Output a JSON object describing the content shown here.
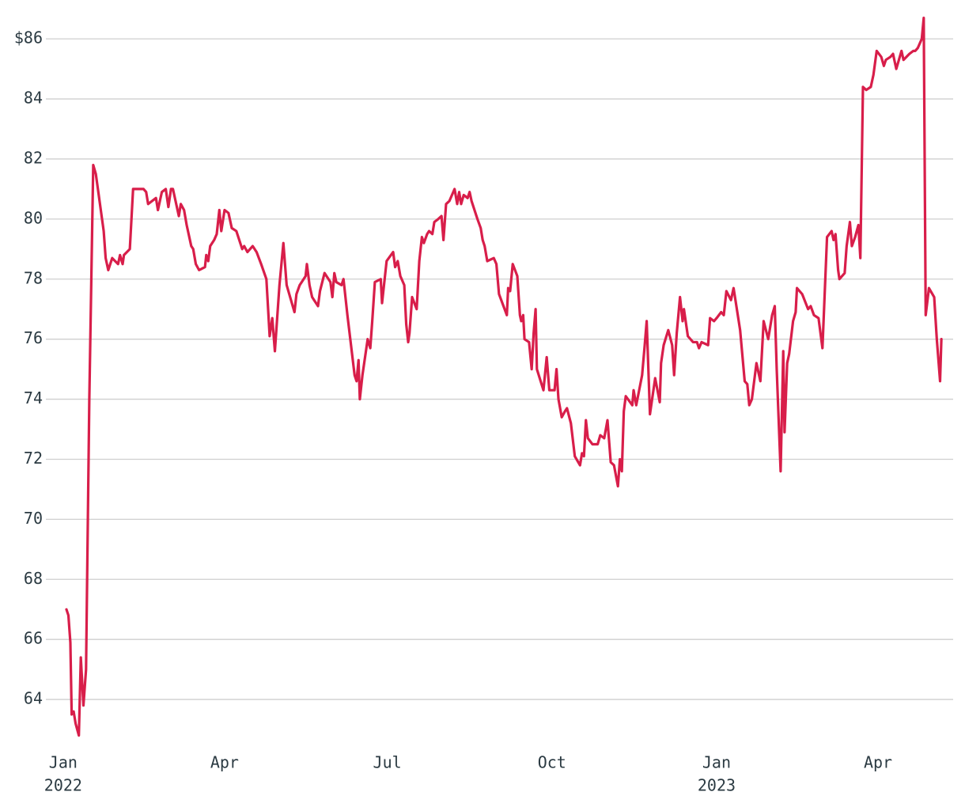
{
  "chart_data": {
    "type": "line",
    "color": "#d81e4a",
    "grid": true,
    "xlim": [
      2021.982,
      2023.362
    ],
    "ylim": [
      62.5,
      86.9
    ],
    "yticks": [
      64,
      66,
      68,
      70,
      72,
      74,
      76,
      78,
      80,
      82,
      84,
      {
        "value": 86,
        "label": "$86"
      }
    ],
    "xticks": [
      {
        "value": 2022,
        "label": "Jan"
      },
      {
        "value": 2022.247,
        "label": "Apr"
      },
      {
        "value": 2022.496,
        "label": "Jul"
      },
      {
        "value": 2022.748,
        "label": "Oct"
      },
      {
        "value": 2023,
        "label": "Jan"
      },
      {
        "value": 2023.247,
        "label": "Apr"
      }
    ],
    "x_year_labels": [
      {
        "value": 2022,
        "label": "2022"
      },
      {
        "value": 2023,
        "label": "2023"
      }
    ],
    "x": [
      2022.005,
      2022.008,
      2022.011,
      2022.013,
      2022.016,
      2022.019,
      2022.024,
      2022.027,
      2022.031,
      2022.035,
      2022.04,
      2022.046,
      2022.05,
      2022.062,
      2022.065,
      2022.069,
      2022.075,
      2022.084,
      2022.087,
      2022.091,
      2022.093,
      2022.102,
      2022.104,
      2022.107,
      2022.113,
      2022.123,
      2022.127,
      2022.13,
      2022.142,
      2022.145,
      2022.151,
      2022.157,
      2022.161,
      2022.165,
      2022.168,
      2022.177,
      2022.18,
      2022.185,
      2022.189,
      2022.196,
      2022.199,
      2022.203,
      2022.208,
      2022.217,
      2022.219,
      2022.222,
      2022.225,
      2022.231,
      2022.235,
      2022.239,
      2022.242,
      2022.247,
      2022.253,
      2022.258,
      2022.265,
      2022.274,
      2022.277,
      2022.282,
      2022.29,
      2022.296,
      2022.303,
      2022.311,
      2022.316,
      2022.32,
      2022.324,
      2022.331,
      2022.337,
      2022.342,
      2022.354,
      2022.357,
      2022.362,
      2022.371,
      2022.373,
      2022.377,
      2022.381,
      2022.39,
      2022.393,
      2022.4,
      2022.409,
      2022.412,
      2022.415,
      2022.418,
      2022.426,
      2022.429,
      2022.435,
      2022.446,
      2022.449,
      2022.452,
      2022.454,
      2022.458,
      2022.466,
      2022.47,
      2022.473,
      2022.477,
      2022.486,
      2022.488,
      2022.492,
      2022.495,
      2022.505,
      2022.508,
      2022.512,
      2022.516,
      2022.522,
      2022.525,
      2022.528,
      2022.53,
      2022.534,
      2022.541,
      2022.545,
      2022.549,
      2022.552,
      2022.557,
      2022.56,
      2022.565,
      2022.568,
      2022.574,
      2022.579,
      2022.582,
      2022.586,
      2022.591,
      2022.599,
      2022.603,
      2022.606,
      2022.609,
      2022.613,
      2022.619,
      2022.622,
      2022.625,
      2022.634,
      2022.639,
      2022.642,
      2022.645,
      2022.649,
      2022.659,
      2022.663,
      2022.667,
      2022.679,
      2022.681,
      2022.684,
      2022.688,
      2022.695,
      2022.699,
      2022.701,
      2022.704,
      2022.706,
      2022.713,
      2022.717,
      2022.72,
      2022.723,
      2022.725,
      2022.735,
      2022.74,
      2022.744,
      2022.752,
      2022.755,
      2022.758,
      2022.763,
      2022.768,
      2022.771,
      2022.777,
      2022.783,
      2022.791,
      2022.794,
      2022.797,
      2022.8,
      2022.803,
      2022.81,
      2022.818,
      2022.822,
      2022.828,
      2022.833,
      2022.838,
      2022.843,
      2022.849,
      2022.852,
      2022.855,
      2022.858,
      2022.861,
      2022.871,
      2022.873,
      2022.877,
      2022.886,
      2022.89,
      2022.893,
      2022.898,
      2022.906,
      2022.913,
      2022.915,
      2022.919,
      2022.926,
      2022.932,
      2022.935,
      2022.939,
      2022.944,
      2022.948,
      2022.95,
      2022.956,
      2022.964,
      2022.97,
      2022.973,
      2022.977,
      2022.987,
      2022.99,
      2022.996,
      2023.0,
      2023.007,
      2023.011,
      2023.015,
      2023.022,
      2023.026,
      2023.031,
      2023.036,
      2023.043,
      2023.047,
      2023.05,
      2023.054,
      2023.061,
      2023.067,
      2023.072,
      2023.079,
      2023.085,
      2023.089,
      2023.092,
      2023.098,
      2023.102,
      2023.104,
      2023.108,
      2023.111,
      2023.117,
      2023.121,
      2023.123,
      2023.131,
      2023.14,
      2023.144,
      2023.149,
      2023.156,
      2023.162,
      2023.169,
      2023.176,
      2023.179,
      2023.182,
      2023.186,
      2023.188,
      2023.196,
      2023.199,
      2023.204,
      2023.207,
      2023.212,
      2023.217,
      2023.22,
      2023.224,
      2023.229,
      2023.236,
      2023.24,
      2023.245,
      2023.252,
      2023.256,
      2023.259,
      2023.266,
      2023.27,
      2023.274,
      2023.275,
      2023.283,
      2023.286,
      2023.295,
      2023.301,
      2023.304,
      2023.308,
      2023.314,
      2023.317,
      2023.32,
      2023.325,
      2023.333,
      2023.337,
      2023.342,
      2023.344
    ],
    "values": [
      67.0,
      66.8,
      65.9,
      63.5,
      63.6,
      63.2,
      62.8,
      65.4,
      63.8,
      65.0,
      74.0,
      81.8,
      81.5,
      79.6,
      78.7,
      78.3,
      78.7,
      78.5,
      78.8,
      78.5,
      78.8,
      79.0,
      79.8,
      81.0,
      81.0,
      81.0,
      80.9,
      80.5,
      80.7,
      80.3,
      80.9,
      81.0,
      80.4,
      81.0,
      81.0,
      80.1,
      80.5,
      80.3,
      79.8,
      79.1,
      79.0,
      78.5,
      78.3,
      78.4,
      78.8,
      78.6,
      79.1,
      79.3,
      79.5,
      80.3,
      79.6,
      80.3,
      80.2,
      79.7,
      79.6,
      79.0,
      79.1,
      78.9,
      79.1,
      78.9,
      78.5,
      78.0,
      76.1,
      76.7,
      75.6,
      77.8,
      79.2,
      77.8,
      76.9,
      77.5,
      77.8,
      78.1,
      78.5,
      77.8,
      77.4,
      77.1,
      77.6,
      78.2,
      77.9,
      77.4,
      78.2,
      77.9,
      77.8,
      78.0,
      76.8,
      74.8,
      74.6,
      75.3,
      74.0,
      74.8,
      76.0,
      75.7,
      76.6,
      77.9,
      78.0,
      77.2,
      78.0,
      78.6,
      78.9,
      78.4,
      78.6,
      78.1,
      77.8,
      76.5,
      75.9,
      76.2,
      77.4,
      77.0,
      78.6,
      79.4,
      79.2,
      79.5,
      79.6,
      79.5,
      79.9,
      80.0,
      80.1,
      79.3,
      80.5,
      80.6,
      81.0,
      80.5,
      80.9,
      80.5,
      80.8,
      80.7,
      80.9,
      80.6,
      80.0,
      79.7,
      79.3,
      79.1,
      78.6,
      78.7,
      78.5,
      77.5,
      76.8,
      77.7,
      77.6,
      78.5,
      78.1,
      76.8,
      76.6,
      76.8,
      76.0,
      75.9,
      75.0,
      76.2,
      77.0,
      75.0,
      74.3,
      75.4,
      74.3,
      74.3,
      75.0,
      74.0,
      73.4,
      73.6,
      73.7,
      73.2,
      72.1,
      71.8,
      72.2,
      72.1,
      73.3,
      72.7,
      72.5,
      72.5,
      72.8,
      72.7,
      73.3,
      71.9,
      71.8,
      71.1,
      72.0,
      71.6,
      73.6,
      74.1,
      73.8,
      74.3,
      73.8,
      74.8,
      75.8,
      76.6,
      73.5,
      74.7,
      73.9,
      75.2,
      75.8,
      76.3,
      75.8,
      74.8,
      76.2,
      77.4,
      76.6,
      77.0,
      76.1,
      75.9,
      75.9,
      75.7,
      75.9,
      75.8,
      76.7,
      76.6,
      76.7,
      76.9,
      76.8,
      77.6,
      77.3,
      77.7,
      77.0,
      76.3,
      74.6,
      74.5,
      73.8,
      74.0,
      75.2,
      74.6,
      76.6,
      76.0,
      76.8,
      77.1,
      75.0,
      71.6,
      75.6,
      72.9,
      75.2,
      75.5,
      76.6,
      76.9,
      77.7,
      77.5,
      77.0,
      77.1,
      76.8,
      76.7,
      75.7,
      79.4,
      79.6,
      79.3,
      79.5,
      78.3,
      78.0,
      78.2,
      79.1,
      79.9,
      79.1,
      79.4,
      79.8,
      78.7,
      84.4,
      84.3,
      84.4,
      84.8,
      85.6,
      85.4,
      85.1,
      85.3,
      85.4,
      85.5,
      85.1,
      85.0,
      85.6,
      85.3,
      85.5,
      85.6,
      85.6,
      85.7,
      86.0,
      86.7,
      76.8,
      77.7,
      77.4,
      76.0,
      74.6,
      76.0
    ]
  }
}
